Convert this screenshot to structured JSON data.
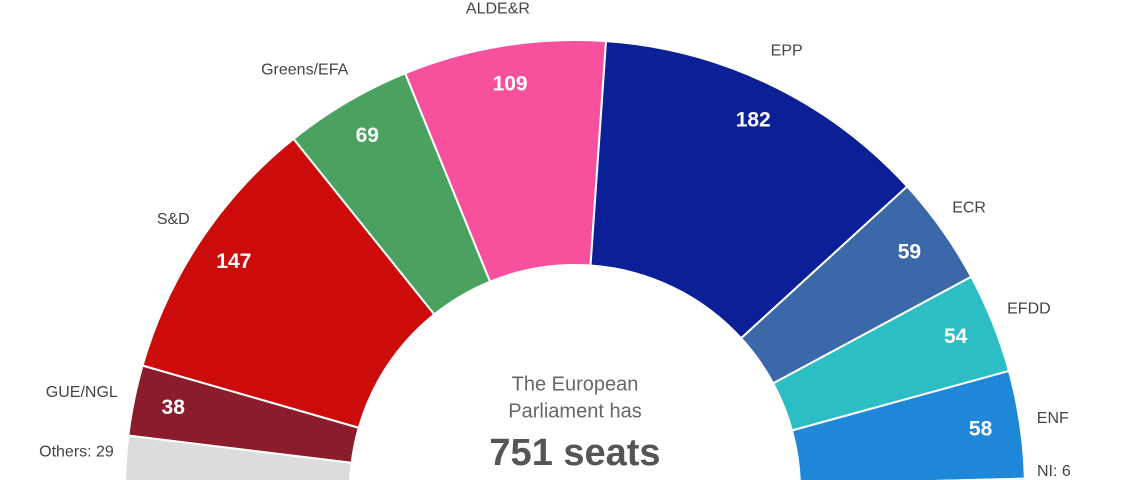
{
  "chart_data": {
    "type": "semicircle",
    "categories": [
      null,
      "GUE/NGL",
      "S&D",
      "Greens/EFA",
      "ALDE&R",
      "EPP",
      "ECR",
      "EFDD",
      "ENF",
      null
    ],
    "values": [
      29,
      38,
      147,
      69,
      109,
      182,
      59,
      54,
      58,
      6
    ],
    "value_labels": [
      "Others: 29",
      null,
      null,
      null,
      null,
      null,
      null,
      null,
      null,
      "NI: 6"
    ],
    "colors": [
      "#dcdcdc",
      "#8a1c2c",
      "#cc0b0b",
      "#4aa160",
      "#f7509c",
      "#0b1f96",
      "#3b68a8",
      "#2bbec4",
      "#1f87d8",
      "#8a8a8a"
    ],
    "center_text": [
      "The European",
      "Parliament has"
    ],
    "total_label": "751 seats"
  }
}
